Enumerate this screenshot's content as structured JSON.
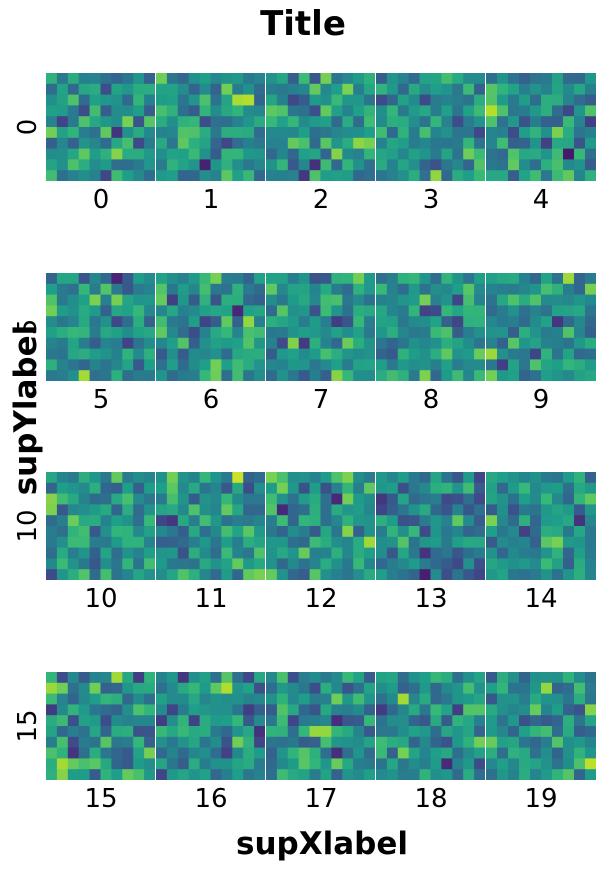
{
  "title": "Title",
  "xlabel": "supXlabel",
  "ylabel": "supYlabel",
  "colormap": "viridis",
  "chart_data": {
    "type": "heatmap",
    "layout": "4 rows x 5 columns of small heatmaps (10x10 cells each), random values",
    "rows": 4,
    "cols": 5,
    "grid_cells": 10,
    "title": "Title",
    "xlabel": "supXlabel",
    "ylabel": "supYlabel",
    "row_labels": [
      "0",
      "5",
      "10",
      "15"
    ],
    "panel_labels": [
      "0",
      "1",
      "2",
      "3",
      "4",
      "5",
      "6",
      "7",
      "8",
      "9",
      "10",
      "11",
      "12",
      "13",
      "14",
      "15",
      "16",
      "17",
      "18",
      "19"
    ],
    "value_range": [
      0,
      1
    ],
    "seed": 42
  }
}
